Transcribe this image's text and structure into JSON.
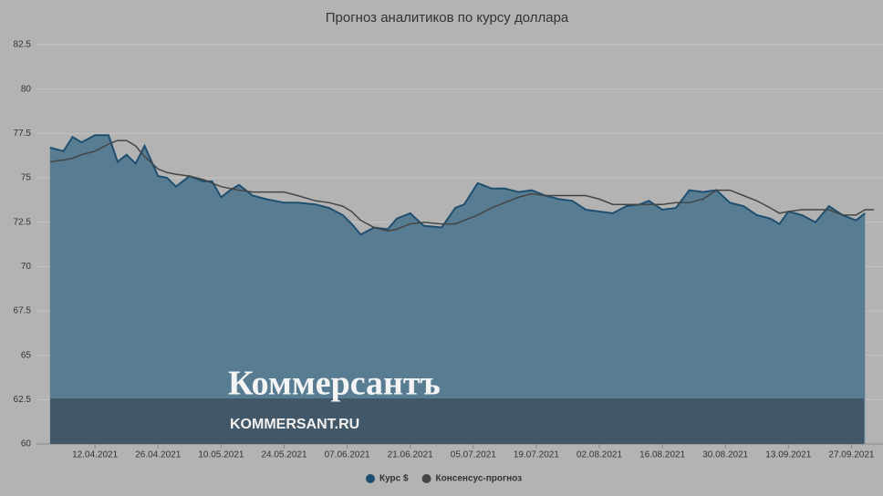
{
  "chart_data": {
    "type": "area",
    "title": "Прогноз аналитиков по курсу доллара",
    "x": [
      "02.04.2021",
      "05.04.2021",
      "07.04.2021",
      "09.04.2021",
      "12.04.2021",
      "15.04.2021",
      "17.04.2021",
      "19.04.2021",
      "21.04.2021",
      "23.04.2021",
      "26.04.2021",
      "28.04.2021",
      "30.04.2021",
      "03.05.2021",
      "06.05.2021",
      "08.05.2021",
      "10.05.2021",
      "12.05.2021",
      "14.05.2021",
      "17.05.2021",
      "20.05.2021",
      "24.05.2021",
      "27.05.2021",
      "31.05.2021",
      "03.06.2021",
      "06.06.2021",
      "08.06.2021",
      "10.06.2021",
      "13.06.2021",
      "16.06.2021",
      "18.06.2021",
      "21.06.2021",
      "24.06.2021",
      "28.06.2021",
      "01.07.2021",
      "03.07.2021",
      "06.07.2021",
      "09.07.2021",
      "12.07.2021",
      "15.07.2021",
      "18.07.2021",
      "21.07.2021",
      "24.07.2021",
      "27.07.2021",
      "30.07.2021",
      "02.08.2021",
      "05.08.2021",
      "08.08.2021",
      "11.08.2021",
      "13.08.2021",
      "16.08.2021",
      "19.08.2021",
      "22.08.2021",
      "25.08.2021",
      "28.08.2021",
      "31.08.2021",
      "03.09.2021",
      "06.09.2021",
      "09.09.2021",
      "11.09.2021",
      "13.09.2021",
      "16.09.2021",
      "19.09.2021",
      "22.09.2021",
      "25.09.2021",
      "28.09.2021",
      "30.09.2021",
      "02.10.2021"
    ],
    "series": [
      {
        "name": "Курс $",
        "color": "#1f4f70",
        "fill": "#587d93",
        "values": [
          76.7,
          76.5,
          77.3,
          77.0,
          77.4,
          77.4,
          75.9,
          76.3,
          75.8,
          76.8,
          75.1,
          75.0,
          74.5,
          75.1,
          74.8,
          74.8,
          73.9,
          74.3,
          74.6,
          74.0,
          73.8,
          73.6,
          73.6,
          73.5,
          73.3,
          72.9,
          72.4,
          71.8,
          72.2,
          72.1,
          72.7,
          73.0,
          72.3,
          72.2,
          73.3,
          73.5,
          74.7,
          74.4,
          74.4,
          74.2,
          74.3,
          74.0,
          73.8,
          73.7,
          73.2,
          73.1,
          73.0,
          73.4,
          73.5,
          73.7,
          73.2,
          73.3,
          74.3,
          74.2,
          74.3,
          73.6,
          73.4,
          72.9,
          72.7,
          72.4,
          73.1,
          72.9,
          72.5,
          73.4,
          72.9,
          72.6,
          73.0,
          null
        ]
      },
      {
        "name": "Консенсус-прогноз",
        "color": "#454545",
        "values": [
          75.9,
          76.0,
          76.1,
          76.3,
          76.5,
          76.9,
          77.1,
          77.1,
          76.8,
          76.2,
          75.5,
          75.3,
          75.2,
          75.1,
          74.9,
          74.7,
          74.5,
          74.4,
          74.3,
          74.2,
          74.2,
          74.2,
          74.0,
          73.7,
          73.6,
          73.4,
          73.1,
          72.6,
          72.2,
          72.0,
          72.1,
          72.4,
          72.5,
          72.4,
          72.4,
          72.6,
          72.9,
          73.3,
          73.6,
          73.9,
          74.1,
          74.0,
          74.0,
          74.0,
          74.0,
          73.8,
          73.5,
          73.5,
          73.5,
          73.5,
          73.5,
          73.6,
          73.6,
          73.8,
          74.3,
          74.3,
          74.0,
          73.7,
          73.3,
          73.0,
          73.1,
          73.2,
          73.2,
          73.2,
          72.9,
          72.9,
          73.2,
          73.2
        ]
      }
    ],
    "xlim": [
      "30.03.2021",
      "04.10.2021"
    ],
    "xticks": [
      "12.04.2021",
      "26.04.2021",
      "10.05.2021",
      "24.05.2021",
      "07.06.2021",
      "21.06.2021",
      "05.07.2021",
      "19.07.2021",
      "02.08.2021",
      "16.08.2021",
      "30.08.2021",
      "13.09.2021",
      "27.09.2021"
    ],
    "ylim": [
      60,
      82.5
    ],
    "yticks": [
      60,
      62.5,
      65,
      67.5,
      70,
      72.5,
      75,
      77.5,
      80,
      82.5
    ],
    "grid": true
  },
  "watermark": {
    "logo": "Коммерсантъ",
    "url": "KOMMERSANT.RU"
  }
}
